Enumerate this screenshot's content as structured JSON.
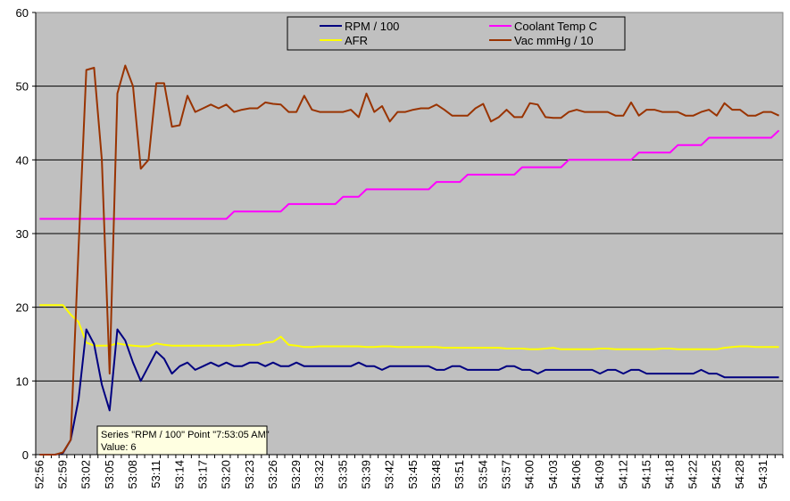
{
  "chart_data": {
    "type": "line",
    "title": "",
    "xlabel": "",
    "ylabel": "",
    "ylim": [
      0,
      60
    ],
    "yticks": [
      0,
      10,
      20,
      30,
      40,
      50,
      60
    ],
    "grid": true,
    "legend_position": "top-center",
    "x_tick_labels": [
      "52:56",
      "52:59",
      "53:02",
      "53:05",
      "53:08",
      "53:11",
      "53:14",
      "53:17",
      "53:20",
      "53:23",
      "53:26",
      "53:29",
      "53:32",
      "53:35",
      "53:39",
      "53:42",
      "53:45",
      "53:48",
      "53:51",
      "53:54",
      "53:57",
      "54:00",
      "54:03",
      "54:06",
      "54:09",
      "54:12",
      "54:15",
      "54:18",
      "54:22",
      "54:25",
      "54:28",
      "54:31"
    ],
    "x_label_every": 3,
    "point_count": 96,
    "series": [
      {
        "name": "RPM / 100",
        "color": "#000080",
        "values": [
          0,
          0,
          0,
          0.2,
          2,
          7.5,
          17,
          15,
          9.5,
          6,
          17,
          15.5,
          12.5,
          10,
          12,
          14,
          13,
          11,
          12,
          12.5,
          11.5,
          12,
          12.5,
          12,
          12.5,
          12,
          12,
          12.5,
          12.5,
          12,
          12.5,
          12,
          12,
          12.5,
          12,
          12,
          12,
          12,
          12,
          12,
          12,
          12.5,
          12,
          12,
          11.5,
          12,
          12,
          12,
          12,
          12,
          12,
          11.5,
          11.5,
          12,
          12,
          11.5,
          11.5,
          11.5,
          11.5,
          11.5,
          12,
          12,
          11.5,
          11.5,
          11,
          11.5,
          11.5,
          11.5,
          11.5,
          11.5,
          11.5,
          11.5,
          11,
          11.5,
          11.5,
          11,
          11.5,
          11.5,
          11,
          11,
          11,
          11,
          11,
          11,
          11,
          11.5,
          11,
          11,
          10.5,
          10.5,
          10.5,
          10.5,
          10.5,
          10.5,
          10.5,
          10.5
        ]
      },
      {
        "name": "Coolant Temp C",
        "color": "#ff00ff",
        "values": [
          32,
          32,
          32,
          32,
          32,
          32,
          32,
          32,
          32,
          32,
          32,
          32,
          32,
          32,
          32,
          32,
          32,
          32,
          32,
          32,
          32,
          32,
          32,
          32,
          32,
          33,
          33,
          33,
          33,
          33,
          33,
          33,
          34,
          34,
          34,
          34,
          34,
          34,
          34,
          35,
          35,
          35,
          36,
          36,
          36,
          36,
          36,
          36,
          36,
          36,
          36,
          37,
          37,
          37,
          37,
          38,
          38,
          38,
          38,
          38,
          38,
          38,
          39,
          39,
          39,
          39,
          39,
          39,
          40,
          40,
          40,
          40,
          40,
          40,
          40,
          40,
          40,
          41,
          41,
          41,
          41,
          41,
          42,
          42,
          42,
          42,
          43,
          43,
          43,
          43,
          43,
          43,
          43,
          43,
          43,
          44
        ]
      },
      {
        "name": "AFR",
        "color": "#ffff00",
        "values": [
          20.3,
          20.3,
          20.3,
          20.3,
          19,
          18,
          15.2,
          14.8,
          14.8,
          14.8,
          15.1,
          14.9,
          14.8,
          14.7,
          14.7,
          15.1,
          14.9,
          14.8,
          14.8,
          14.8,
          14.8,
          14.8,
          14.8,
          14.8,
          14.8,
          14.8,
          14.9,
          14.9,
          14.9,
          15.2,
          15.3,
          16,
          14.9,
          14.8,
          14.6,
          14.6,
          14.7,
          14.7,
          14.7,
          14.7,
          14.7,
          14.7,
          14.6,
          14.6,
          14.7,
          14.7,
          14.6,
          14.6,
          14.6,
          14.6,
          14.6,
          14.6,
          14.5,
          14.5,
          14.5,
          14.5,
          14.5,
          14.5,
          14.5,
          14.5,
          14.4,
          14.4,
          14.4,
          14.3,
          14.3,
          14.4,
          14.5,
          14.3,
          14.3,
          14.3,
          14.3,
          14.3,
          14.4,
          14.4,
          14.3,
          14.3,
          14.3,
          14.3,
          14.3,
          14.3,
          14.4,
          14.4,
          14.3,
          14.3,
          14.3,
          14.3,
          14.3,
          14.3,
          14.5,
          14.6,
          14.7,
          14.7,
          14.6,
          14.6,
          14.6,
          14.6
        ]
      },
      {
        "name": "Vac mmHg / 10",
        "color": "#993300",
        "values": [
          0,
          0,
          0,
          0.3,
          2,
          28,
          52.2,
          52.5,
          40,
          11,
          49,
          52.8,
          50,
          38.8,
          40,
          50.4,
          50.4,
          44.5,
          44.7,
          48.7,
          46.5,
          47,
          47.5,
          47,
          47.5,
          46.5,
          46.8,
          47,
          47,
          47.8,
          47.6,
          47.5,
          46.5,
          46.5,
          48.7,
          46.8,
          46.5,
          46.5,
          46.5,
          46.5,
          46.8,
          45.8,
          49,
          46.5,
          47.3,
          45.2,
          46.5,
          46.5,
          46.8,
          47,
          47,
          47.5,
          46.8,
          46,
          46,
          46,
          47,
          47.6,
          45.2,
          45.8,
          46.8,
          45.8,
          45.8,
          47.7,
          47.5,
          45.8,
          45.7,
          45.7,
          46.5,
          46.8,
          46.5,
          46.5,
          46.5,
          46.5,
          46,
          46,
          47.8,
          46,
          46.8,
          46.8,
          46.5,
          46.5,
          46.5,
          46,
          46,
          46.5,
          46.8,
          46,
          47.7,
          46.8,
          46.8,
          46,
          46,
          46.5,
          46.5,
          46
        ]
      }
    ],
    "legend_order": [
      "RPM / 100",
      "Coolant Temp C",
      "AFR",
      "Vac mmHg / 10"
    ],
    "tooltip": {
      "line1": "Series \"RPM / 100\" Point \"7:53:05 AM\"",
      "line2": "Value: 6"
    }
  }
}
